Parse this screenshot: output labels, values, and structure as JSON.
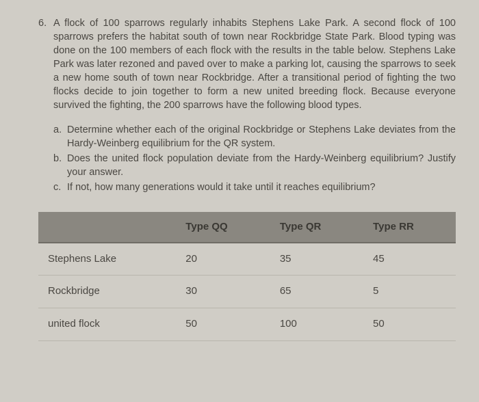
{
  "question": {
    "number": "6.",
    "text": "A flock of 100 sparrows regularly inhabits Stephens Lake Park. A second flock of 100 sparrows prefers the habitat south of town near Rockbridge State Park. Blood typing was done on the 100 members of each flock with the results in the table below. Stephens Lake Park was later rezoned and paved over to make a parking lot, causing the sparrows to seek a new home south of town near Rockbridge. After a transitional period of fighting the two flocks decide to join together to form a new united breeding flock. Because everyone survived the fighting, the 200 sparrows have the following blood types."
  },
  "subs": [
    {
      "letter": "a.",
      "text": "Determine whether each of the original Rockbridge or Stephens Lake deviates from the Hardy-Weinberg equilibrium for the QR system."
    },
    {
      "letter": "b.",
      "text": "Does the united flock population deviate from the Hardy-Weinberg equilibrium? Justify your answer."
    },
    {
      "letter": "c.",
      "text": "If not, how many generations would it take until it reaches equilibrium?"
    }
  ],
  "table": {
    "columns": [
      "",
      "Type QQ",
      "Type QR",
      "Type RR"
    ],
    "rows": [
      [
        "Stephens Lake",
        "20",
        "35",
        "45"
      ],
      [
        "Rockbridge",
        "30",
        "65",
        "5"
      ],
      [
        "united flock",
        "50",
        "100",
        "50"
      ]
    ],
    "header_bg": "#8a8780",
    "border_color": "#b8b5ad"
  }
}
